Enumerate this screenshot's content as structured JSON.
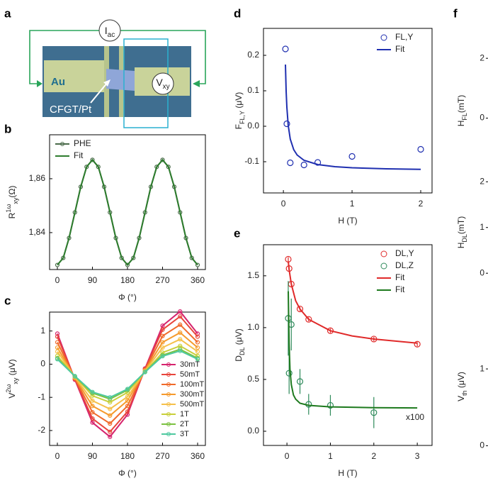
{
  "device": {
    "panel": "a",
    "current": {
      "base": "I",
      "sub": "ac"
    },
    "voltage": {
      "base": "V",
      "sub": "xy"
    },
    "electrode": "Au",
    "sample": "CFGT/Pt"
  },
  "chart_data": [
    {
      "type": "line",
      "panel": "b",
      "xlabel": "Φ (°)",
      "ylabel": {
        "base": "R",
        "sup": "1ω",
        "sub": "xy",
        "unit": "(Ω)"
      },
      "x": [
        0,
        15,
        30,
        45,
        60,
        75,
        90,
        105,
        120,
        135,
        150,
        165,
        180,
        195,
        210,
        225,
        240,
        255,
        270,
        285,
        300,
        315,
        330,
        345,
        360
      ],
      "xlim": [
        -20,
        380
      ],
      "xticks": [
        0,
        90,
        180,
        270,
        360
      ],
      "ylim": [
        1.8263,
        1.8763
      ],
      "yticks": [
        {
          "value": 1.84,
          "label": "1,84"
        },
        {
          "value": 1.86,
          "label": "1,86"
        }
      ],
      "legend": "upper left",
      "series": [
        {
          "name": "PHE",
          "color": "#4a6b4a",
          "mode": "line+markers",
          "values": [
            1.828,
            1.8306,
            1.838,
            1.8475,
            1.857,
            1.8644,
            1.867,
            1.8644,
            1.857,
            1.8475,
            1.838,
            1.8306,
            1.828,
            1.8306,
            1.838,
            1.8475,
            1.857,
            1.8644,
            1.867,
            1.8644,
            1.857,
            1.8475,
            1.838,
            1.8306,
            1.828
          ]
        },
        {
          "name": "Fit",
          "color": "#2e7d2e",
          "mode": "line",
          "values": [
            1.828,
            1.8306,
            1.838,
            1.8475,
            1.857,
            1.8644,
            1.867,
            1.8644,
            1.857,
            1.8475,
            1.838,
            1.8306,
            1.828,
            1.8306,
            1.838,
            1.8475,
            1.857,
            1.8644,
            1.867,
            1.8644,
            1.857,
            1.8475,
            1.838,
            1.8306,
            1.828
          ]
        }
      ]
    },
    {
      "type": "line",
      "panel": "c",
      "xlabel": "Φ (°)",
      "ylabel": {
        "base": "V",
        "sup": "2ω",
        "sub": "xy",
        "unit": " (μV)"
      },
      "x": [
        0,
        45,
        90,
        135,
        180,
        225,
        270,
        315,
        360
      ],
      "xlim": [
        -20,
        380
      ],
      "xticks": [
        0,
        90,
        180,
        270,
        360
      ],
      "ylim": [
        -2.45,
        1.57
      ],
      "yticks": [
        -2,
        -1,
        0,
        1
      ],
      "legend": "lower right",
      "series": [
        {
          "name": "30mT",
          "color": "#d6246e",
          "mode": "line+markers",
          "values": [
            0.92,
            -0.47,
            -1.76,
            -2.19,
            -1.52,
            -0.13,
            1.16,
            1.59,
            0.92
          ]
        },
        {
          "name": "50mT",
          "color": "#e8453c",
          "mode": "line+markers",
          "values": [
            0.83,
            -0.45,
            -1.64,
            -2.04,
            -1.43,
            -0.15,
            1.04,
            1.44,
            0.83
          ]
        },
        {
          "name": "100mT",
          "color": "#f06a2a",
          "mode": "line+markers",
          "values": [
            0.66,
            -0.43,
            -1.45,
            -1.79,
            -1.26,
            -0.17,
            0.85,
            1.19,
            0.66
          ]
        },
        {
          "name": "300mT",
          "color": "#f59a2c",
          "mode": "line+markers",
          "values": [
            0.5,
            -0.41,
            -1.26,
            -1.55,
            -1.1,
            -0.19,
            0.66,
            0.95,
            0.5
          ]
        },
        {
          "name": "500mT",
          "color": "#f5c04a",
          "mode": "line+markers",
          "values": [
            0.38,
            -0.39,
            -1.1,
            -1.35,
            -0.98,
            -0.21,
            0.5,
            0.75,
            0.38
          ]
        },
        {
          "name": "1T",
          "color": "#c9cf3a",
          "mode": "line+markers",
          "values": [
            0.25,
            -0.37,
            -0.95,
            -1.15,
            -0.85,
            -0.23,
            0.35,
            0.55,
            0.25
          ]
        },
        {
          "name": "2T",
          "color": "#7cc242",
          "mode": "line+markers",
          "values": [
            0.18,
            -0.37,
            -0.87,
            -1.05,
            -0.78,
            -0.23,
            0.27,
            0.45,
            0.18
          ]
        },
        {
          "name": "3T",
          "color": "#4fc9a0",
          "mode": "line+markers",
          "values": [
            0.15,
            -0.36,
            -0.84,
            -1.0,
            -0.75,
            -0.24,
            0.24,
            0.4,
            0.15
          ]
        }
      ]
    },
    {
      "type": "scatter",
      "panel": "d",
      "xlabel": "H (T)",
      "ylabel": {
        "base": "F",
        "sub": "FL,Y",
        "unit": " (μV)"
      },
      "xlim": [
        -0.29,
        2.165
      ],
      "xticks": [
        0,
        1,
        2
      ],
      "ylim": [
        -0.188,
        0.276
      ],
      "yticks": [
        -0.1,
        {
          "value": 0,
          "label": "0.0"
        },
        0.1,
        0.2
      ],
      "legend": "upper right",
      "series": [
        {
          "name": "FL,Y",
          "color": "#1f2fb0",
          "mode": "markers",
          "x": [
            0.03,
            0.05,
            0.1,
            0.3,
            0.5,
            1,
            2
          ],
          "values": [
            0.218,
            0.007,
            -0.103,
            -0.109,
            -0.102,
            -0.085,
            -0.065
          ]
        },
        {
          "name": "Fit",
          "color": "#1f2fb0",
          "mode": "line",
          "x": [
            0.03,
            0.04,
            0.05,
            0.07,
            0.1,
            0.15,
            0.2,
            0.3,
            0.5,
            0.75,
            1,
            1.5,
            2
          ],
          "values": [
            0.174,
            0.099,
            0.054,
            0.003,
            -0.036,
            -0.066,
            -0.081,
            -0.096,
            -0.108,
            -0.114,
            -0.117,
            -0.12,
            -0.1215
          ]
        }
      ]
    },
    {
      "type": "scatter",
      "panel": "e",
      "xlabel": "H (T)",
      "ylabel": {
        "base": "D",
        "sub": "DL",
        "unit": " (μV)"
      },
      "xlim": [
        -0.54,
        3.34
      ],
      "xticks": [
        0,
        1,
        2,
        3
      ],
      "ylim": [
        -0.137,
        1.8
      ],
      "yticks": [
        {
          "value": 0,
          "label": "0.0"
        },
        0.5,
        {
          "value": 1,
          "label": "1.0"
        },
        1.5
      ],
      "legend": "upper right",
      "annotation": "x100",
      "series": [
        {
          "name": "DL,Y",
          "color": "#e02a2a",
          "mode": "markers",
          "x": [
            0.03,
            0.05,
            0.1,
            0.3,
            0.5,
            1,
            2,
            3
          ],
          "values": [
            1.66,
            1.57,
            1.42,
            1.18,
            1.08,
            0.97,
            0.89,
            0.84
          ],
          "errors": [
            0.02,
            0.02,
            0.02,
            0.02,
            0.02,
            0.02,
            0.02,
            0.02
          ]
        },
        {
          "name": "DL,Z",
          "color": "#2e8a5a",
          "mode": "markers",
          "x": [
            0.03,
            0.05,
            0.1,
            0.3,
            0.5,
            1,
            2
          ],
          "values": [
            1.09,
            0.56,
            1.03,
            0.48,
            0.26,
            0.25,
            0.18
          ],
          "errors": [
            0.36,
            0.2,
            0.25,
            0.12,
            0.1,
            0.1,
            0.15
          ]
        },
        {
          "name": "Fit",
          "color": "#e02a2a",
          "mode": "line",
          "x": [
            0.03,
            0.05,
            0.1,
            0.2,
            0.3,
            0.5,
            1,
            1.5,
            2,
            3
          ],
          "values": [
            1.64,
            1.56,
            1.42,
            1.26,
            1.18,
            1.08,
            0.97,
            0.92,
            0.89,
            0.85
          ]
        },
        {
          "name": "Fit",
          "color": "#1e7a1e",
          "mode": "line",
          "x": [
            0.03,
            0.05,
            0.07,
            0.1,
            0.15,
            0.2,
            0.3,
            0.5,
            1,
            2,
            3
          ],
          "values": [
            1.35,
            0.85,
            0.6,
            0.45,
            0.35,
            0.31,
            0.27,
            0.25,
            0.235,
            0.228,
            0.225
          ]
        }
      ]
    },
    {
      "type": "line",
      "panel": "f",
      "ylabel": {
        "base": "H",
        "sub": "FL",
        "unit": "(mT)"
      },
      "ylim": [
        -2.5,
        3.0
      ],
      "yticks": [
        0,
        2
      ],
      "series": []
    },
    {
      "type": "line",
      "ylabel": {
        "base": "H",
        "sub": "DL",
        "unit": "(mT)"
      },
      "ylim": [
        -0.54,
        2.33
      ],
      "yticks": [
        0,
        1,
        2
      ],
      "series": []
    },
    {
      "type": "line",
      "ylabel": {
        "base": "V",
        "sub": "th",
        "unit": " (μV)"
      },
      "ylim": [
        -0.2,
        1.74
      ],
      "yticks": [
        0,
        1
      ],
      "series": []
    }
  ]
}
